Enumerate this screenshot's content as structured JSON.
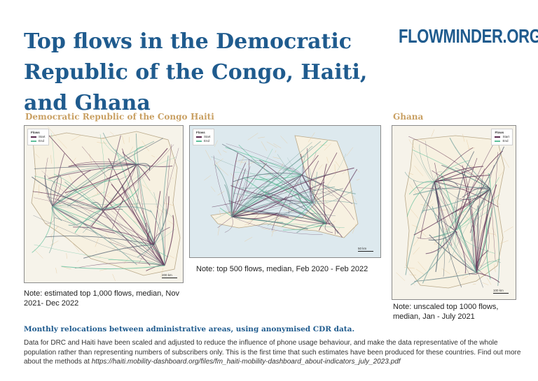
{
  "header": {
    "title": "Top flows in the Democratic Republic of the Congo, Haiti, and Ghana",
    "brand": "FLOWMINDER.ORG"
  },
  "legend": {
    "heading": "Flows",
    "start_label": "Start",
    "end_label": "End",
    "start_color": "#5b2a4e",
    "end_color": "#5dbf9a"
  },
  "maps": [
    {
      "country_label": "Democratic Republic of the Congo",
      "scale_label": "200 km",
      "note": "Note: estimated top 1,000 flows, median,  Nov 2021- Dec 2022"
    },
    {
      "country_label": "Haiti",
      "scale_label": "50 km",
      "note": "Note: top 500 flows, median, Feb 2020 - Feb 2022"
    },
    {
      "country_label": "Ghana",
      "scale_label": "100 km",
      "note": "Note: unscaled top 1000 flows, median, Jan - July 2021"
    }
  ],
  "footer": {
    "subheading": "Monthly relocations between administrative areas, using anonymised CDR data.",
    "body": "Data for DRC and Haiti have been scaled and adjusted to reduce the influence of phone usage behaviour, and make the data representative of the whole population rather than representing numbers of subscribers only. This is the first time that such estimates have been produced for these countries. Find out more about the methods at ",
    "url": "https://haiti.mobility-dashboard.org/files/fm_haiti-mobility-dashboard_about-indicators_july_2023.pdf"
  }
}
